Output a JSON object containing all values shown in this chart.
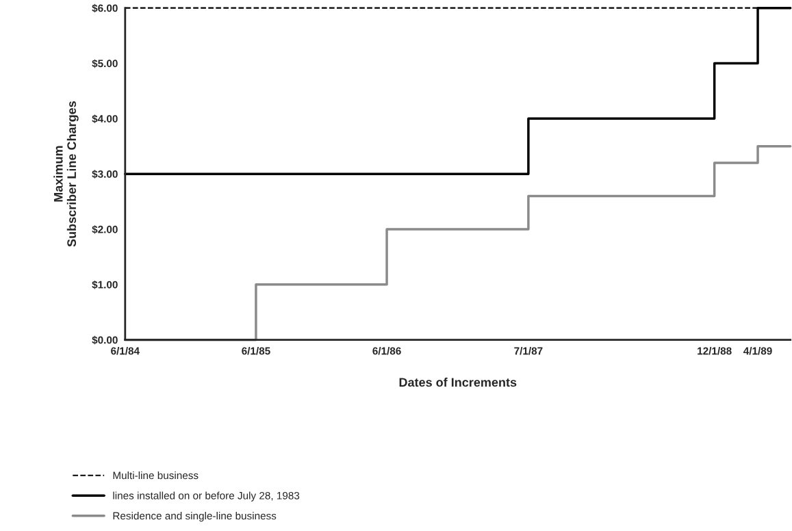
{
  "chart_data": {
    "type": "step",
    "xlabel": "Dates of Increments",
    "ylabel": "Maximum\nSubscriber Line Charges",
    "xlim": [
      "1984-06-01",
      "1989-07-01"
    ],
    "xticks": [
      {
        "value": "1984-06-01",
        "label": "6/1/84"
      },
      {
        "value": "1985-06-01",
        "label": "6/1/85"
      },
      {
        "value": "1986-06-01",
        "label": "6/1/86"
      },
      {
        "value": "1987-07-01",
        "label": "7/1/87"
      },
      {
        "value": "1988-12-01",
        "label": "12/1/88"
      },
      {
        "value": "1989-04-01",
        "label": "4/1/89"
      }
    ],
    "ylim": [
      0,
      6
    ],
    "yticks": [
      {
        "value": 0,
        "label": "$0.00"
      },
      {
        "value": 1,
        "label": "$1.00"
      },
      {
        "value": 2,
        "label": "$2.00"
      },
      {
        "value": 3,
        "label": "$3.00"
      },
      {
        "value": 4,
        "label": "$4.00"
      },
      {
        "value": 5,
        "label": "$5.00"
      },
      {
        "value": 6,
        "label": "$6.00"
      }
    ],
    "grid": false,
    "legend": "bottom left",
    "series": [
      {
        "name": "Multi-line business",
        "color": "#000000",
        "line_style": "dashed",
        "x": [
          "1984-06-01",
          "1989-07-01"
        ],
        "values": [
          6,
          6
        ]
      },
      {
        "name": "lines installed on or before July 28, 1983",
        "color": "#000000",
        "line_style": "solid",
        "x": [
          "1984-06-01",
          "1987-07-01",
          "1988-12-01",
          "1989-04-01",
          "1989-07-01"
        ],
        "values": [
          3,
          4,
          5,
          6,
          6
        ]
      },
      {
        "name": "Residence and single-line business",
        "color": "#8a8a8a",
        "line_style": "solid",
        "x": [
          "1984-06-01",
          "1985-06-01",
          "1986-06-01",
          "1987-07-01",
          "1988-12-01",
          "1989-04-01",
          "1989-07-01"
        ],
        "values": [
          0,
          1,
          2,
          2.6,
          3.2,
          3.5,
          3.5
        ]
      }
    ]
  }
}
